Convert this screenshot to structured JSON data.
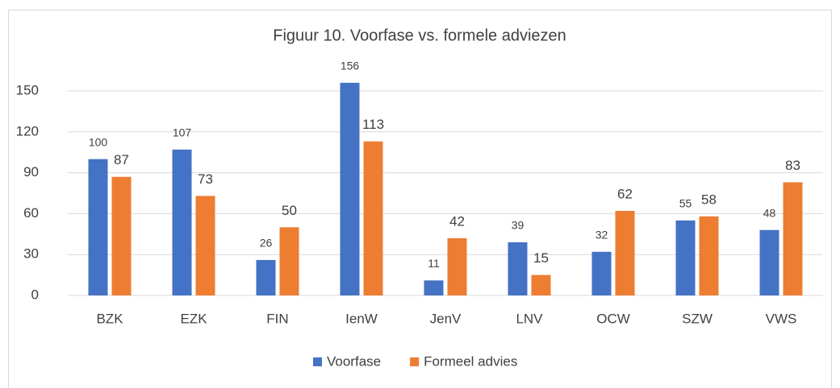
{
  "chart_data": {
    "type": "bar",
    "title": "Figuur 10. Voorfase vs. formele adviezen",
    "categories": [
      "BZK",
      "EZK",
      "FIN",
      "IenW",
      "JenV",
      "LNV",
      "OCW",
      "SZW",
      "VWS"
    ],
    "series": [
      {
        "name": "Voorfase",
        "color": "#4472c4",
        "values": [
          100,
          107,
          26,
          156,
          11,
          39,
          32,
          55,
          48
        ]
      },
      {
        "name": "Formeel advies",
        "color": "#ed7d31",
        "values": [
          87,
          73,
          50,
          113,
          42,
          15,
          62,
          58,
          83
        ]
      }
    ],
    "ylim": [
      0,
      150
    ],
    "yticks": [
      0,
      30,
      60,
      90,
      120,
      150
    ],
    "grid": true,
    "legend": "bottom"
  }
}
